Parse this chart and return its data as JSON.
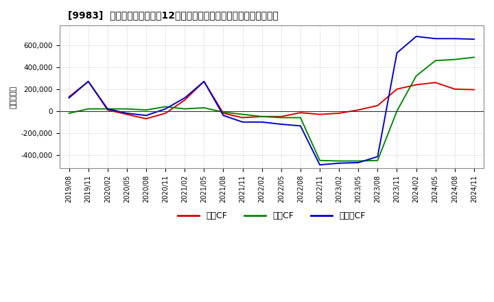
{
  "title": "[9983]  キャッシュフローの12か月移動合計の対前年同期増減額の推移",
  "ylabel": "（百万円）",
  "background_color": "#ffffff",
  "grid_color": "#aaaaaa",
  "x_labels": [
    "2019/08",
    "2019/11",
    "2020/02",
    "2020/05",
    "2020/08",
    "2020/11",
    "2021/02",
    "2021/05",
    "2021/08",
    "2021/11",
    "2022/02",
    "2022/05",
    "2022/08",
    "2022/11",
    "2023/02",
    "2023/05",
    "2023/08",
    "2023/11",
    "2024/02",
    "2024/05",
    "2024/08",
    "2024/11"
  ],
  "operating_cf": [
    130000,
    270000,
    10000,
    -30000,
    -70000,
    -20000,
    100000,
    270000,
    -20000,
    -60000,
    -50000,
    -50000,
    -15000,
    -30000,
    -20000,
    10000,
    50000,
    200000,
    240000,
    260000,
    200000,
    195000
  ],
  "investing_cf": [
    -20000,
    20000,
    20000,
    20000,
    10000,
    40000,
    20000,
    30000,
    -10000,
    -30000,
    -50000,
    -60000,
    -60000,
    -450000,
    -455000,
    -455000,
    -450000,
    0,
    320000,
    460000,
    470000,
    490000
  ],
  "free_cf": [
    120000,
    270000,
    20000,
    -20000,
    -40000,
    20000,
    120000,
    270000,
    -40000,
    -100000,
    -100000,
    -120000,
    -135000,
    -490000,
    -475000,
    -470000,
    -415000,
    530000,
    680000,
    660000,
    660000,
    655000
  ],
  "operating_color": "#dd0000",
  "investing_color": "#008800",
  "free_color": "#0000cc",
  "line_width": 1.4,
  "ylim": [
    -520000,
    780000
  ],
  "yticks": [
    -400000,
    -200000,
    0,
    200000,
    400000,
    600000
  ],
  "legend_labels": [
    "営業CF",
    "投資CF",
    "フリーCF"
  ]
}
